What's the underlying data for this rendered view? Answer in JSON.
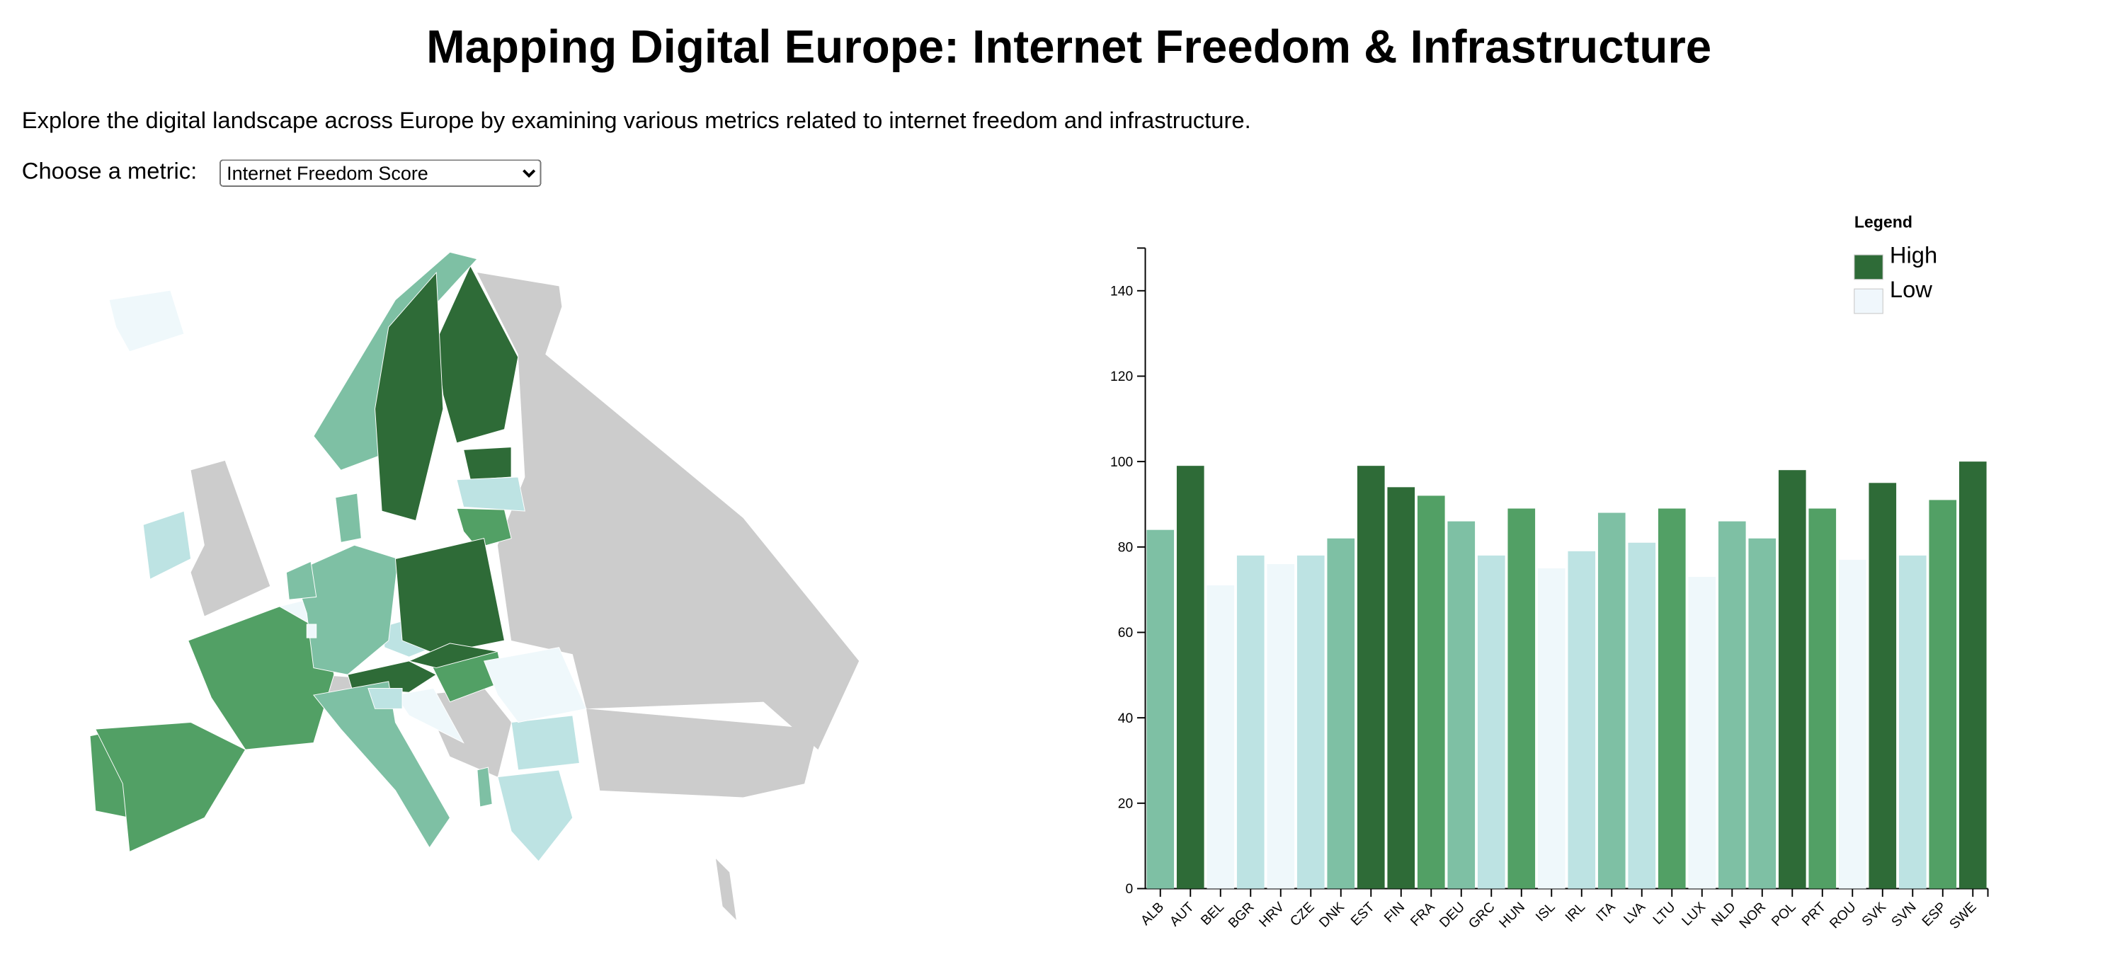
{
  "header": {
    "title": "Mapping Digital Europe: Internet Freedom & Infrastructure",
    "description": "Explore the digital landscape across Europe by examining various metrics related to internet freedom and infrastructure."
  },
  "controls": {
    "label": "Choose a metric:",
    "selected": "Internet Freedom Score"
  },
  "chart_data": {
    "type": "bar",
    "categories": [
      "ALB",
      "AUT",
      "BEL",
      "BGR",
      "HRV",
      "CZE",
      "DNK",
      "EST",
      "FIN",
      "FRA",
      "DEU",
      "GRC",
      "HUN",
      "ISL",
      "IRL",
      "ITA",
      "LVA",
      "LTU",
      "LUX",
      "NLD",
      "NOR",
      "POL",
      "PRT",
      "ROU",
      "SVK",
      "SVN",
      "ESP",
      "SWE"
    ],
    "values": [
      84,
      99,
      71,
      78,
      76,
      78,
      82,
      99,
      94,
      92,
      86,
      78,
      89,
      75,
      79,
      88,
      81,
      89,
      73,
      86,
      82,
      98,
      89,
      77,
      95,
      78,
      91,
      100
    ],
    "colors": [
      "#7ec0a4",
      "#2e6b37",
      "#eff8fb",
      "#bde3e3",
      "#eff8fb",
      "#bde3e3",
      "#7ec0a4",
      "#2e6b37",
      "#2e6b37",
      "#52a065",
      "#7ec0a4",
      "#bde3e3",
      "#52a065",
      "#eff8fb",
      "#bde3e3",
      "#7ec0a4",
      "#bde3e3",
      "#52a065",
      "#eff8fb",
      "#7ec0a4",
      "#7ec0a4",
      "#2e6b37",
      "#52a065",
      "#eff8fb",
      "#2e6b37",
      "#bde3e3",
      "#52a065",
      "#2e6b37"
    ],
    "ylim": [
      0,
      150
    ],
    "yticks": [
      0,
      20,
      40,
      60,
      80,
      100,
      120,
      140
    ],
    "legend": {
      "title": "Legend",
      "items": [
        {
          "label": "High",
          "color": "#2e6b37"
        },
        {
          "label": "Low",
          "color": "#f0f7fc"
        }
      ]
    }
  }
}
